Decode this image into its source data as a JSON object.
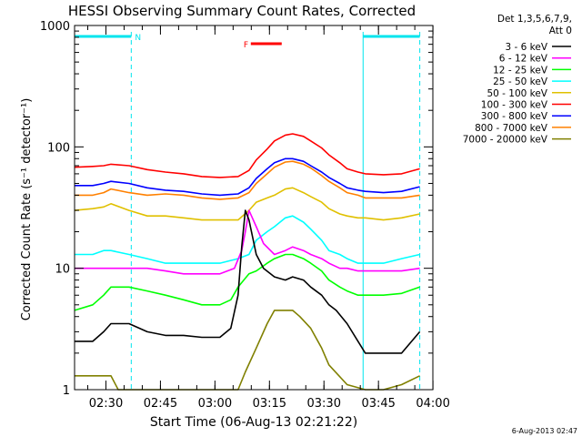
{
  "chart_data": {
    "type": "line",
    "title": "HESSI Observing Summary Count Rates, Corrected",
    "ylabel": "Corrected Count Rate (s⁻¹ detector⁻¹)",
    "xlabel": "Start Time (06-Aug-13 02:21:22)",
    "footer": "6-Aug-2013 02:47",
    "y_scale": "log",
    "ylim": [
      1,
      1000
    ],
    "xlim_minutes_after_start": [
      0,
      98.6
    ],
    "y_tick_labels": [
      "1",
      "10",
      "100",
      "1000"
    ],
    "x_ticks": [
      {
        "label": "02:30",
        "minute": 8.63
      },
      {
        "label": "02:45",
        "minute": 23.63
      },
      {
        "label": "03:00",
        "minute": 38.63
      },
      {
        "label": "03:15",
        "minute": 53.63
      },
      {
        "label": "03:30",
        "minute": 68.63
      },
      {
        "label": "03:45",
        "minute": 83.63
      },
      {
        "label": "04:00",
        "minute": 98.63
      }
    ],
    "legend": {
      "header": [
        "Det 1,3,5,6,7,9,",
        "Att 0"
      ],
      "placement": "right"
    },
    "flags": {
      "night": [
        {
          "label": "N",
          "start": 0.0,
          "end": 15.6
        },
        {
          "label": "",
          "start": 79.4,
          "end": 95.0
        }
      ],
      "flare": {
        "label": "F",
        "start": 46.0,
        "end": 54.5
      }
    },
    "series": [
      {
        "name": "7000 - 20000 keV",
        "color": "#808000",
        "x": [
          0,
          10,
          12,
          20,
          30,
          40,
          45,
          47,
          50,
          53,
          55,
          58,
          60,
          62,
          65,
          68,
          70,
          75,
          80,
          85,
          90,
          95
        ],
        "y": [
          1.3,
          1.3,
          1.0,
          1.0,
          1.0,
          1.0,
          1.0,
          1.4,
          2.2,
          3.5,
          4.5,
          4.5,
          4.5,
          4.0,
          3.2,
          2.2,
          1.6,
          1.1,
          1.0,
          1.0,
          1.1,
          1.3
        ]
      },
      {
        "name": "800 - 7000 keV",
        "color": "#ff8000",
        "x": [
          0,
          5,
          8,
          10,
          15,
          20,
          25,
          30,
          35,
          40,
          45,
          48,
          50,
          53,
          55,
          58,
          60,
          63,
          65,
          68,
          70,
          73,
          75,
          78,
          80,
          85,
          90,
          95
        ],
        "y": [
          40,
          40,
          42,
          45,
          42,
          40,
          41,
          40,
          38,
          37,
          38,
          42,
          50,
          60,
          68,
          75,
          76,
          72,
          67,
          58,
          52,
          46,
          42,
          40,
          38,
          38,
          38,
          40
        ]
      },
      {
        "name": "300 - 800 keV",
        "color": "#0000ff",
        "x": [
          0,
          5,
          8,
          10,
          15,
          20,
          25,
          30,
          35,
          40,
          45,
          48,
          50,
          53,
          55,
          58,
          60,
          63,
          65,
          68,
          70,
          73,
          75,
          78,
          80,
          85,
          90,
          95
        ],
        "y": [
          48,
          48,
          50,
          52,
          50,
          46,
          44,
          43,
          41,
          40,
          41,
          46,
          55,
          66,
          74,
          80,
          80,
          76,
          70,
          62,
          56,
          50,
          46,
          44,
          43,
          42,
          43,
          47
        ]
      },
      {
        "name": "100 - 300 keV",
        "color": "#ff0000",
        "x": [
          0,
          5,
          8,
          10,
          15,
          20,
          25,
          30,
          35,
          40,
          45,
          48,
          50,
          53,
          55,
          58,
          60,
          63,
          65,
          68,
          70,
          73,
          75,
          78,
          80,
          85,
          90,
          95
        ],
        "y": [
          68,
          69,
          70,
          72,
          70,
          65,
          62,
          60,
          57,
          56,
          57,
          64,
          78,
          96,
          112,
          125,
          128,
          122,
          112,
          98,
          86,
          74,
          66,
          62,
          60,
          59,
          60,
          66
        ]
      },
      {
        "name": "50 - 100 keV",
        "color": "#e0c000",
        "x": [
          0,
          5,
          8,
          10,
          15,
          20,
          25,
          30,
          35,
          40,
          45,
          48,
          50,
          53,
          55,
          58,
          60,
          63,
          65,
          68,
          70,
          73,
          75,
          78,
          80,
          85,
          90,
          95
        ],
        "y": [
          30,
          31,
          32,
          34,
          30,
          27,
          27,
          26,
          25,
          25,
          25,
          30,
          35,
          38,
          40,
          45,
          46,
          42,
          39,
          35,
          31,
          28,
          27,
          26,
          26,
          25,
          26,
          28
        ]
      },
      {
        "name": "25 - 50 keV",
        "color": "#00ffff",
        "x": [
          0,
          5,
          8,
          10,
          15,
          20,
          25,
          30,
          35,
          40,
          45,
          48,
          50,
          53,
          55,
          58,
          60,
          63,
          65,
          68,
          70,
          73,
          75,
          78,
          80,
          85,
          90,
          95
        ],
        "y": [
          13,
          13,
          14,
          14,
          13,
          12,
          11,
          11,
          11,
          11,
          12,
          13,
          17,
          20,
          22,
          26,
          27,
          24,
          21,
          17,
          14,
          13,
          12,
          11,
          11,
          11,
          12,
          13
        ]
      },
      {
        "name": "12 - 25 keV",
        "color": "#00ff00",
        "x": [
          0,
          5,
          8,
          10,
          15,
          20,
          25,
          30,
          35,
          40,
          43,
          45,
          48,
          50,
          53,
          55,
          58,
          60,
          63,
          65,
          68,
          70,
          73,
          75,
          78,
          80,
          85,
          90,
          95
        ],
        "y": [
          4.5,
          5.0,
          6.0,
          7.0,
          7.0,
          6.5,
          6.0,
          5.5,
          5.0,
          5.0,
          5.5,
          7.0,
          9.0,
          9.5,
          11,
          12,
          13,
          13,
          12,
          11,
          9.5,
          8.0,
          7.0,
          6.5,
          6.0,
          6.0,
          6.0,
          6.2,
          7.0
        ]
      },
      {
        "name": "6 - 12 keV",
        "color": "#ff00ff",
        "x": [
          0,
          5,
          10,
          15,
          20,
          25,
          30,
          35,
          40,
          44,
          46,
          47,
          48,
          50,
          52,
          55,
          58,
          60,
          63,
          65,
          68,
          70,
          73,
          75,
          78,
          80,
          85,
          90,
          95
        ],
        "y": [
          10,
          10,
          10,
          10,
          10,
          9.5,
          9.0,
          9.0,
          9.0,
          10,
          14,
          20,
          30,
          22,
          16,
          13,
          14,
          15,
          14,
          13,
          12,
          11,
          10,
          10,
          9.5,
          9.5,
          9.5,
          9.5,
          10
        ]
      },
      {
        "name": "3 - 6 keV",
        "color": "#000000",
        "x": [
          0,
          5,
          8,
          10,
          15,
          20,
          25,
          30,
          35,
          40,
          43,
          45,
          46,
          47,
          48,
          50,
          52,
          55,
          58,
          60,
          63,
          65,
          68,
          70,
          72,
          75,
          78,
          80,
          85,
          90,
          95
        ],
        "y": [
          2.5,
          2.5,
          3.0,
          3.5,
          3.5,
          3.0,
          2.8,
          2.8,
          2.7,
          2.7,
          3.2,
          6.0,
          15,
          30,
          25,
          13,
          10,
          8.5,
          8.0,
          8.5,
          8.0,
          7.0,
          6.0,
          5.0,
          4.5,
          3.5,
          2.5,
          2.0,
          2.0,
          2.0,
          3.0
        ]
      }
    ]
  }
}
